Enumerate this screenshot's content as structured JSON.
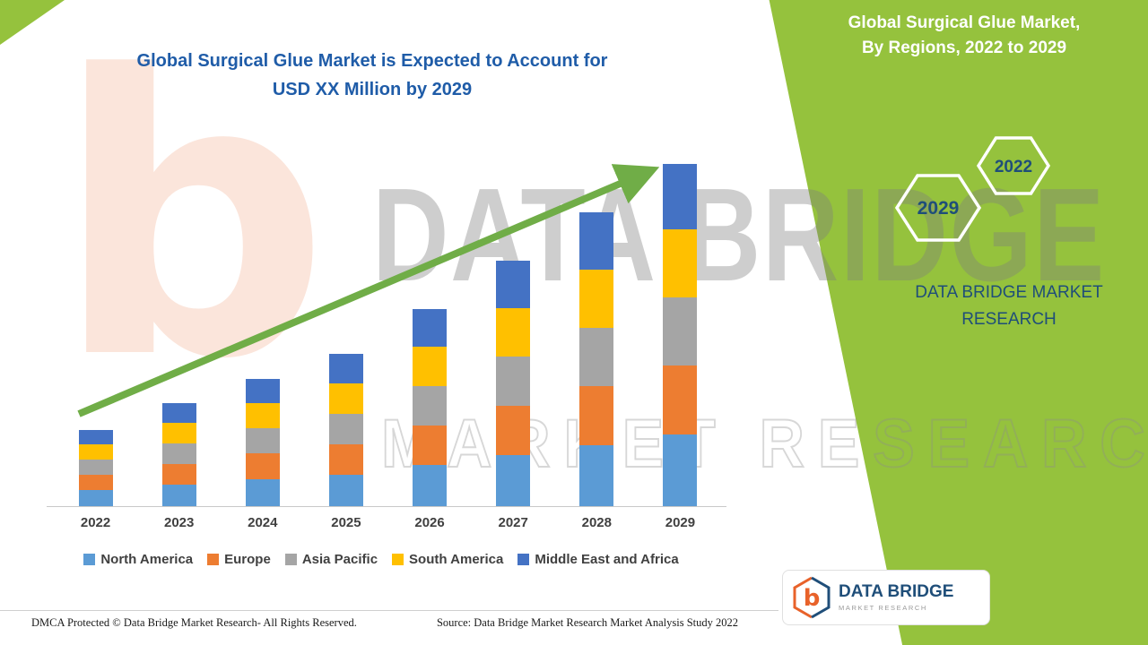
{
  "header": {
    "title_line1": "Global Surgical Glue Market is Expected to Account for",
    "title_line2": "USD XX Million by 2029"
  },
  "side_panel": {
    "bg_color": "#95C23D",
    "title_line1": "Global Surgical Glue Market,",
    "title_line2": "By Regions, 2022 to 2029",
    "hexagons": [
      {
        "label": "2029"
      },
      {
        "label": "2022"
      }
    ],
    "brand_line1": "DATA BRIDGE MARKET",
    "brand_line2": "RESEARCH"
  },
  "watermark": {
    "line1": "DATA BRIDGE",
    "line2": "MARKET RESEARCH",
    "letter": "b"
  },
  "logo_card": {
    "name": "DATA BRIDGE",
    "subtitle": "MARKET RESEARCH"
  },
  "footer": {
    "left": "DMCA Protected © Data Bridge Market Research- All Rights Reserved.",
    "source": "Source: Data Bridge Market Research Market Analysis Study 2022"
  },
  "chart_data": {
    "type": "bar",
    "stacked": true,
    "title": "Global Surgical Glue Market is Expected to Account for USD XX Million by 2029",
    "categories": [
      "2022",
      "2023",
      "2024",
      "2025",
      "2026",
      "2027",
      "2028",
      "2029"
    ],
    "series": [
      {
        "name": "North America",
        "color": "#5B9BD5",
        "values": [
          18,
          24,
          30,
          35,
          46,
          57,
          68,
          80
        ]
      },
      {
        "name": "Europe",
        "color": "#ED7D31",
        "values": [
          17,
          23,
          29,
          34,
          44,
          55,
          66,
          77
        ]
      },
      {
        "name": "Asia Pacific",
        "color": "#A5A5A5",
        "values": [
          17,
          23,
          28,
          34,
          44,
          55,
          65,
          76
        ]
      },
      {
        "name": "South America",
        "color": "#FFC000",
        "values": [
          17,
          23,
          28,
          34,
          44,
          54,
          65,
          76
        ]
      },
      {
        "name": "Middle East and Africa",
        "color": "#4472C4",
        "values": [
          16,
          22,
          27,
          33,
          42,
          53,
          64,
          73
        ]
      }
    ],
    "value_axis": {
      "visible": false,
      "min": 0,
      "max": 400,
      "label": "USD XX Million (values not labeled)"
    },
    "grid": false,
    "legend_position": "bottom",
    "trend_arrow": {
      "color": "#70AD47",
      "direction": "up-right"
    }
  }
}
